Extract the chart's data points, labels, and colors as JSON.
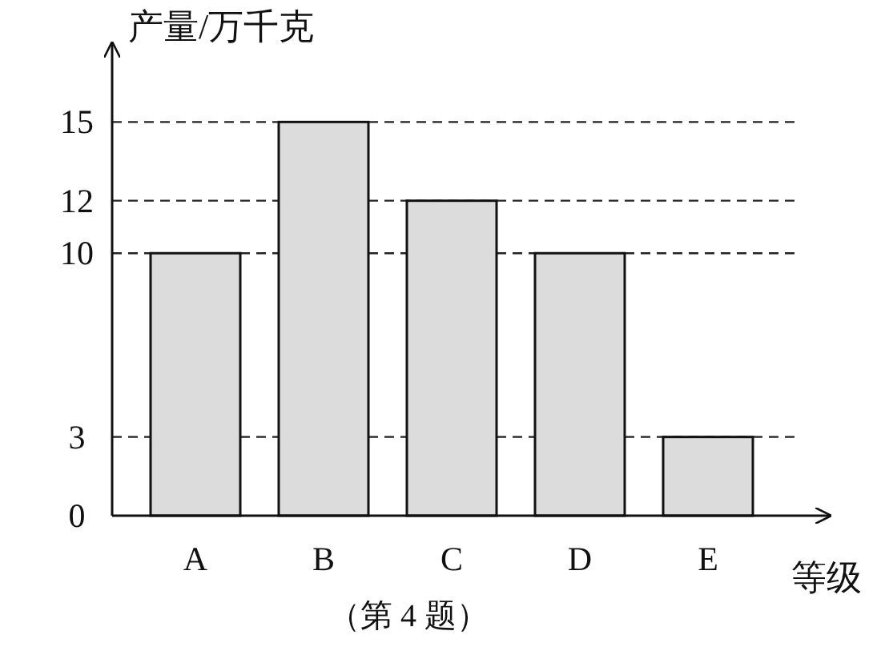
{
  "chart_data": {
    "type": "bar",
    "xlabel": "等级",
    "ylabel": "产量/万千克",
    "categories": [
      "A",
      "B",
      "C",
      "D",
      "E"
    ],
    "values": [
      10,
      15,
      12,
      10,
      3
    ],
    "color": "#dcdcdc",
    "ylim": [
      0,
      18
    ],
    "yticks": [
      0,
      3,
      10,
      12,
      15
    ],
    "grid": "y",
    "annotations": [
      "（第 4 题）"
    ]
  }
}
